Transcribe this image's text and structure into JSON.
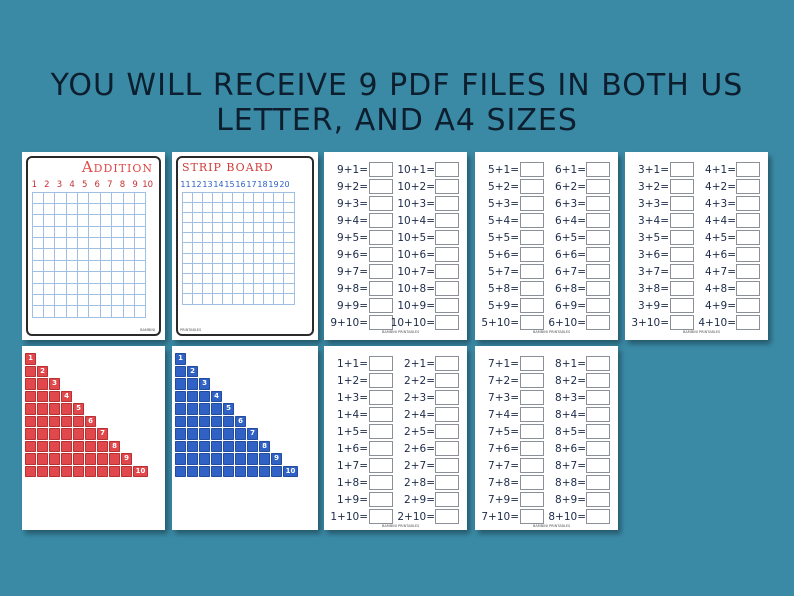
{
  "headline": "YOU WILL RECEIVE 9 PDF FILES IN BOTH US LETTER, AND A4 SIZES",
  "addition_board": {
    "title": "Addition",
    "numbers": [
      "1",
      "2",
      "3",
      "4",
      "5",
      "6",
      "7",
      "8",
      "9",
      "10"
    ],
    "footer": "BAMBINI"
  },
  "strip_board": {
    "title": "STRIP BOARD",
    "numbers": [
      "11",
      "12",
      "13",
      "14",
      "15",
      "16",
      "17",
      "18",
      "19",
      "20"
    ],
    "footer": "PRINTABLES"
  },
  "strip_numbers": [
    "1",
    "2",
    "3",
    "4",
    "5",
    "6",
    "7",
    "8",
    "9",
    "10"
  ],
  "worksheet_footer": "BAMBINI PRINTABLES",
  "worksheets": [
    {
      "left": [
        "9+1=",
        "9+2=",
        "9+3=",
        "9+4=",
        "9+5=",
        "9+6=",
        "9+7=",
        "9+8=",
        "9+9=",
        "9+10="
      ],
      "right": [
        "10+1=",
        "10+2=",
        "10+3=",
        "10+4=",
        "10+5=",
        "10+6=",
        "10+7=",
        "10+8=",
        "10+9=",
        "10+10="
      ]
    },
    {
      "left": [
        "5+1=",
        "5+2=",
        "5+3=",
        "5+4=",
        "5+5=",
        "5+6=",
        "5+7=",
        "5+8=",
        "5+9=",
        "5+10="
      ],
      "right": [
        "6+1=",
        "6+2=",
        "6+3=",
        "6+4=",
        "6+5=",
        "6+6=",
        "6+7=",
        "6+8=",
        "6+9=",
        "6+10="
      ]
    },
    {
      "left": [
        "3+1=",
        "3+2=",
        "3+3=",
        "3+4=",
        "3+5=",
        "3+6=",
        "3+7=",
        "3+8=",
        "3+9=",
        "3+10="
      ],
      "right": [
        "4+1=",
        "4+2=",
        "4+3=",
        "4+4=",
        "4+5=",
        "4+6=",
        "4+7=",
        "4+8=",
        "4+9=",
        "4+10="
      ]
    },
    {
      "left": [
        "1+1=",
        "1+2=",
        "1+3=",
        "1+4=",
        "1+5=",
        "1+6=",
        "1+7=",
        "1+8=",
        "1+9=",
        "1+10="
      ],
      "right": [
        "2+1=",
        "2+2=",
        "2+3=",
        "2+4=",
        "2+5=",
        "2+6=",
        "2+7=",
        "2+8=",
        "2+9=",
        "2+10="
      ]
    },
    {
      "left": [
        "7+1=",
        "7+2=",
        "7+3=",
        "7+4=",
        "7+5=",
        "7+6=",
        "7+7=",
        "7+8=",
        "7+9=",
        "7+10="
      ],
      "right": [
        "8+1=",
        "8+2=",
        "8+3=",
        "8+4=",
        "8+5=",
        "8+6=",
        "8+7=",
        "8+8=",
        "8+9=",
        "8+10="
      ]
    }
  ],
  "colors": {
    "background": "#3a8aa6",
    "red": "#e0484c",
    "blue": "#2f62c4",
    "grid": "#9fc0e2",
    "title_red": "#d23b3b",
    "title_blue": "#2f62c4"
  }
}
